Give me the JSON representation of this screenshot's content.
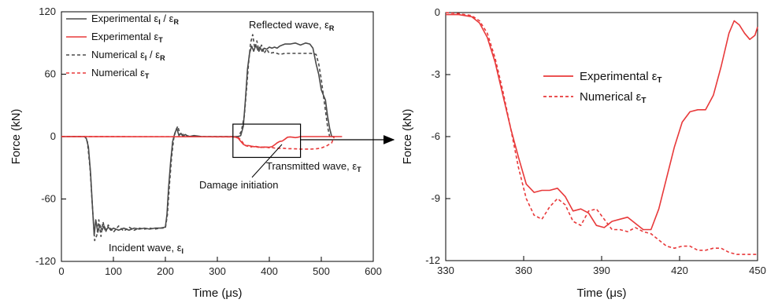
{
  "chart_data": [
    {
      "type": "line",
      "xlabel": "Time (μs)",
      "ylabel": "Force (kN)",
      "xlim": [
        0,
        600
      ],
      "ylim": [
        -120,
        120
      ],
      "xticks": [
        "0",
        "100",
        "200",
        "300",
        "400",
        "500",
        "600"
      ],
      "yticks": [
        "120",
        "60",
        "0",
        "-60",
        "-120"
      ],
      "grid": false,
      "legend_placement": "top-left",
      "legend": [
        {
          "text": "Experimental ε",
          "sub": "I",
          "mid": " / ε",
          "sub2": "R",
          "color": "#4a4a4a",
          "dash": false
        },
        {
          "text": "Experimental ε",
          "sub": "T",
          "mid": "",
          "sub2": "",
          "color": "#e8393a",
          "dash": false
        },
        {
          "text": "Numerical ε",
          "sub": "I",
          "mid": " / ε",
          "sub2": "R",
          "color": "#4a4a4a",
          "dash": true
        },
        {
          "text": "Numerical ε",
          "sub": "T",
          "mid": "",
          "sub2": "",
          "color": "#e8393a",
          "dash": true
        }
      ],
      "annotations": [
        {
          "text": "Reflected wave, ε",
          "sub": "R"
        },
        {
          "text": "Transmitted wave, ε",
          "sub": "T"
        },
        {
          "text": "Damage initiation",
          "sub": ""
        },
        {
          "text": "Incident wave, ε",
          "sub": "I"
        }
      ],
      "zoom_box": {
        "x": [
          330,
          460
        ],
        "y": [
          -20,
          12
        ]
      },
      "series": [
        {
          "color": "#4a4a4a",
          "dash": false,
          "x": [
            0,
            45,
            48,
            52,
            56,
            60,
            63,
            66,
            70,
            74,
            78,
            82,
            86,
            90,
            95,
            100,
            110,
            120,
            130,
            140,
            150,
            160,
            170,
            180,
            190,
            200,
            203,
            206,
            210,
            214,
            218,
            222,
            226,
            230,
            234,
            238,
            245,
            255,
            270,
            290,
            310,
            330,
            340,
            345,
            350,
            354,
            358,
            362,
            366,
            370,
            374,
            378,
            382,
            386,
            390,
            395,
            400,
            405,
            410,
            415,
            420,
            425,
            430,
            440,
            450,
            460,
            470,
            478,
            484,
            490,
            495,
            500,
            504,
            508,
            512,
            516,
            520,
            525
          ],
          "y": [
            0,
            0,
            -2,
            -10,
            -35,
            -70,
            -95,
            -80,
            -92,
            -85,
            -90,
            -86,
            -90,
            -87,
            -90,
            -88,
            -90,
            -88,
            -90,
            -88,
            -89,
            -88,
            -89,
            -88,
            -88,
            -87,
            -75,
            -50,
            -25,
            -5,
            3,
            8,
            1,
            3,
            0,
            2,
            0,
            1,
            0,
            0,
            0,
            0,
            0,
            1,
            10,
            35,
            65,
            80,
            87,
            82,
            88,
            83,
            86,
            82,
            85,
            84,
            86,
            85,
            86,
            85,
            87,
            88,
            89,
            89,
            90,
            88,
            90,
            89,
            85,
            70,
            60,
            45,
            40,
            35,
            20,
            8,
            0,
            0
          ]
        },
        {
          "color": "#4a4a4a",
          "dash": true,
          "x": [
            0,
            45,
            50,
            55,
            60,
            64,
            68,
            72,
            76,
            80,
            85,
            90,
            100,
            110,
            120,
            130,
            140,
            150,
            160,
            170,
            180,
            190,
            200,
            204,
            208,
            212,
            216,
            220,
            224,
            228,
            232,
            236,
            240,
            250,
            270,
            290,
            310,
            330,
            340,
            346,
            352,
            356,
            360,
            364,
            368,
            372,
            376,
            380,
            385,
            390,
            395,
            400,
            410,
            420,
            430,
            440,
            450,
            460,
            470,
            480,
            490,
            495,
            500,
            504,
            508,
            512,
            516,
            520,
            525
          ],
          "y": [
            0,
            0,
            -5,
            -30,
            -70,
            -100,
            -95,
            -80,
            -96,
            -82,
            -92,
            -85,
            -92,
            -86,
            -91,
            -87,
            -90,
            -88,
            -89,
            -88,
            -89,
            -88,
            -88,
            -75,
            -45,
            -20,
            -2,
            6,
            10,
            2,
            4,
            0,
            1,
            0,
            0,
            0,
            0,
            0,
            0,
            5,
            20,
            45,
            70,
            90,
            98,
            85,
            92,
            82,
            88,
            80,
            84,
            80,
            81,
            79,
            80,
            80,
            80,
            80,
            80,
            80,
            79,
            70,
            55,
            40,
            25,
            10,
            0,
            0,
            0
          ]
        },
        {
          "color": "#e8393a",
          "dash": false,
          "x": [
            0,
            330,
            335,
            340,
            345,
            350,
            355,
            360,
            365,
            370,
            375,
            380,
            385,
            390,
            395,
            400,
            405,
            410,
            415,
            420,
            425,
            430,
            435,
            440,
            445,
            450,
            455,
            460,
            480,
            500,
            520,
            540
          ],
          "y": [
            0,
            -0.2,
            -0.5,
            -1.5,
            -4.5,
            -7.5,
            -8.7,
            -8.6,
            -9.2,
            -9.7,
            -9.5,
            -10.0,
            -10.4,
            -10.0,
            -10.1,
            -10.2,
            -9.7,
            -8.0,
            -6.0,
            -4.7,
            -4.2,
            -2.5,
            -0.6,
            -0.3,
            -0.6,
            -1.0,
            -0.6,
            0,
            0,
            0,
            0,
            0
          ]
        },
        {
          "color": "#e8393a",
          "dash": true,
          "x": [
            0,
            330,
            340,
            345,
            350,
            355,
            360,
            365,
            370,
            375,
            380,
            385,
            390,
            395,
            400,
            405,
            410,
            415,
            420,
            425,
            430,
            435,
            440,
            445,
            450,
            460,
            470,
            480,
            490,
            500,
            510,
            520,
            525
          ],
          "y": [
            0,
            -0.2,
            -0.8,
            -3.0,
            -6.5,
            -8.8,
            -9.4,
            -10.0,
            -9.1,
            -9.8,
            -10.5,
            -10.0,
            -10.4,
            -10.2,
            -10.8,
            -10.5,
            -11.0,
            -11.2,
            -11.3,
            -11.1,
            -11.4,
            -11.6,
            -11.6,
            -11.7,
            -11.8,
            -12.0,
            -12.0,
            -12.0,
            -11.8,
            -11.0,
            -9.0,
            -6.0,
            0
          ]
        }
      ]
    },
    {
      "type": "line",
      "xlabel": "Time (μs)",
      "ylabel": "Force (kN)",
      "xlim": [
        330,
        450
      ],
      "ylim": [
        -12,
        0
      ],
      "xticks": [
        "330",
        "360",
        "390",
        "420",
        "450"
      ],
      "yticks": [
        "0",
        "-3",
        "-6",
        "-9",
        "-12"
      ],
      "grid": false,
      "legend_placement": "top-center",
      "legend": [
        {
          "text": "Experimental ε",
          "sub": "T",
          "color": "#e8393a",
          "dash": false
        },
        {
          "text": "Numerical ε",
          "sub": "T",
          "color": "#e8393a",
          "dash": true
        }
      ],
      "series": [
        {
          "color": "#e8393a",
          "dash": false,
          "x": [
            330,
            335,
            340,
            343,
            346,
            349,
            352,
            355,
            358,
            361,
            364,
            367,
            370,
            373,
            376,
            379,
            382,
            385,
            388,
            391,
            394,
            397,
            400,
            403,
            406,
            409,
            412,
            415,
            418,
            421,
            424,
            427,
            430,
            433,
            436,
            439,
            441,
            443,
            445,
            447,
            449,
            450
          ],
          "y": [
            -0.1,
            -0.1,
            -0.2,
            -0.5,
            -1.2,
            -2.4,
            -4.0,
            -5.6,
            -7.0,
            -8.3,
            -8.7,
            -8.6,
            -8.6,
            -8.5,
            -8.9,
            -9.6,
            -9.5,
            -9.7,
            -10.3,
            -10.4,
            -10.1,
            -10.0,
            -9.9,
            -10.2,
            -10.5,
            -10.5,
            -9.5,
            -8.0,
            -6.5,
            -5.3,
            -4.8,
            -4.7,
            -4.7,
            -4.0,
            -2.6,
            -1.0,
            -0.4,
            -0.6,
            -1.0,
            -1.3,
            -1.1,
            -0.7
          ]
        },
        {
          "color": "#e8393a",
          "dash": true,
          "x": [
            330,
            335,
            340,
            343,
            346,
            349,
            352,
            355,
            358,
            361,
            364,
            367,
            370,
            373,
            376,
            379,
            382,
            385,
            388,
            391,
            394,
            397,
            400,
            403,
            406,
            409,
            412,
            415,
            418,
            421,
            424,
            427,
            430,
            433,
            436,
            439,
            442,
            445,
            448,
            450
          ],
          "y": [
            0,
            -0.05,
            -0.15,
            -0.4,
            -1.0,
            -2.2,
            -3.8,
            -5.6,
            -7.5,
            -9.0,
            -9.8,
            -10.0,
            -9.4,
            -9.0,
            -9.3,
            -10.1,
            -10.3,
            -9.6,
            -9.5,
            -10.0,
            -10.5,
            -10.5,
            -10.6,
            -10.4,
            -10.6,
            -10.7,
            -11.0,
            -11.3,
            -11.4,
            -11.3,
            -11.3,
            -11.5,
            -11.5,
            -11.4,
            -11.4,
            -11.6,
            -11.7,
            -11.7,
            -11.7,
            -11.7
          ]
        }
      ]
    }
  ]
}
